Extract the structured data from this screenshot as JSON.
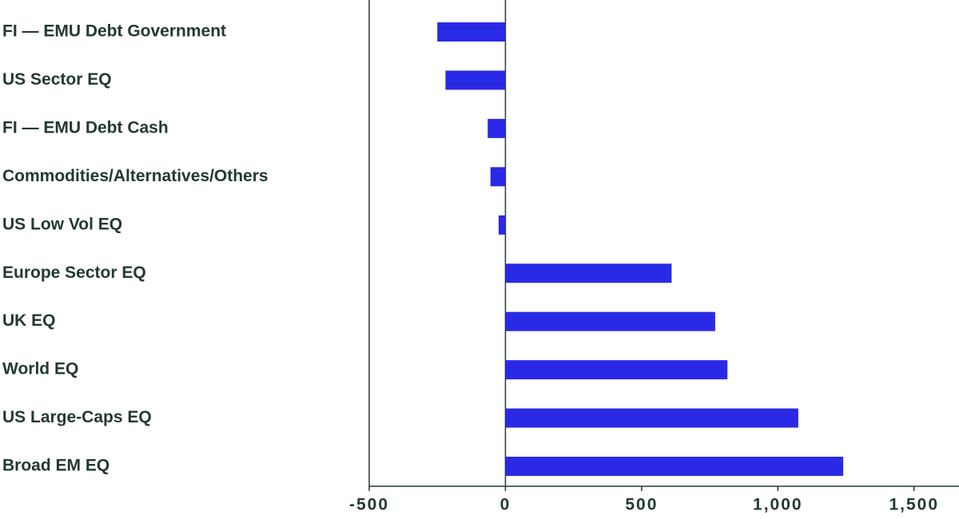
{
  "chart_data": {
    "type": "bar",
    "orientation": "horizontal",
    "categories": [
      "FI — EMU Debt Government",
      "US Sector EQ",
      "FI — EMU Debt Cash",
      "Commodities/Alternatives/Others",
      "US Low Vol EQ",
      "Europe Sector EQ",
      "UK EQ",
      "World EQ",
      "US Large-Caps EQ",
      "Broad EM EQ"
    ],
    "values": [
      -250,
      -220,
      -65,
      -55,
      -25,
      610,
      770,
      815,
      1075,
      1240
    ],
    "color": "#2a2ae6",
    "xlim": [
      -500,
      1665
    ],
    "xticks": [
      -500,
      0,
      500,
      {
        "value": 1000,
        "label": "1,000"
      },
      {
        "value": 1500,
        "label": "1,500"
      }
    ],
    "grid": false
  }
}
